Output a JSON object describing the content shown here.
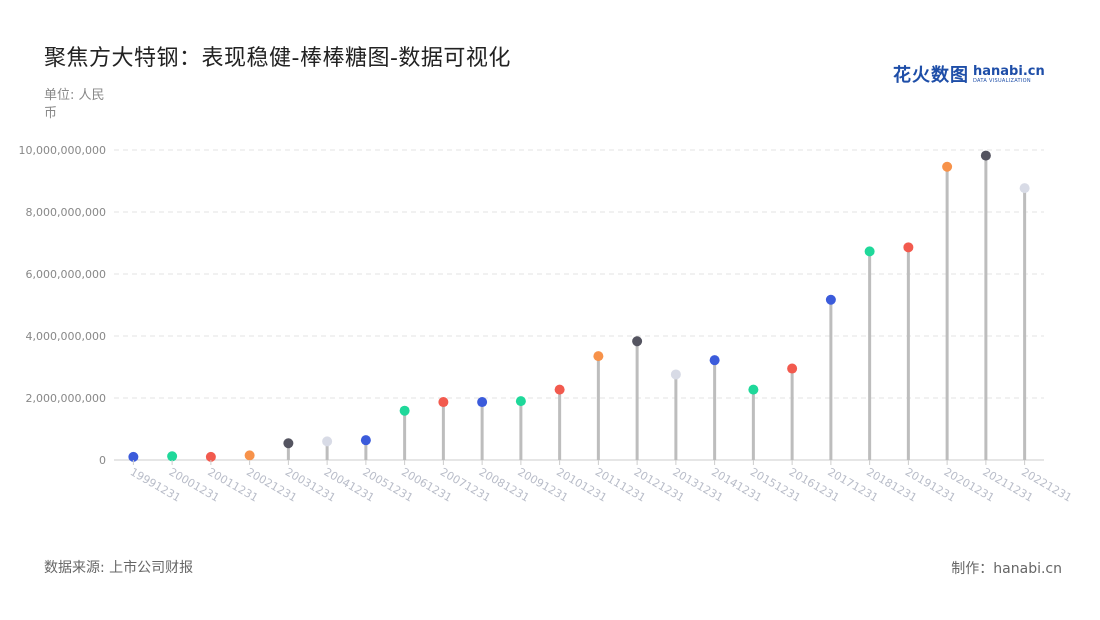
{
  "title": "聚焦方大特钢：表现稳健-棒棒糖图-数据可视化",
  "unit_label": "单位: 人民币",
  "source_label": "数据来源: 上市公司财报",
  "credit_label": "制作：hanabi.cn",
  "logo": {
    "cn": "花火数图",
    "en": "hanabi.cn",
    "sub": "DATA VISUALIZATION"
  },
  "colors": {
    "stem": "#bdbdbd",
    "grid": "#e3e3e3",
    "palette": [
      "#3b5bdb",
      "#1fd89a",
      "#f25a4e",
      "#f7924a",
      "#545460",
      "#d8dbe6"
    ]
  },
  "chart_data": {
    "type": "lollipop",
    "ylim": [
      0,
      10000000000
    ],
    "yticks": [
      "0",
      "2,000,000,000",
      "4,000,000,000",
      "6,000,000,000",
      "8,000,000,000",
      "10,000,000,000"
    ],
    "grid": true,
    "categories": [
      "19991231",
      "20001231",
      "20011231",
      "20021231",
      "20031231",
      "20041231",
      "20051231",
      "20061231",
      "20071231",
      "20081231",
      "20091231",
      "20101231",
      "20111231",
      "20121231",
      "20131231",
      "20141231",
      "20151231",
      "20161231",
      "20171231",
      "20181231",
      "20191231",
      "20201231",
      "20211231",
      "20221231"
    ],
    "values": [
      100000000,
      120000000,
      100000000,
      150000000,
      540000000,
      600000000,
      640000000,
      1590000000,
      1870000000,
      1870000000,
      1900000000,
      2270000000,
      3350000000,
      3830000000,
      2760000000,
      3220000000,
      2270000000,
      2950000000,
      5170000000,
      6730000000,
      6860000000,
      9460000000,
      9820000000,
      8770000000
    ],
    "point_colors": [
      "#3b5bdb",
      "#1fd89a",
      "#f25a4e",
      "#f7924a",
      "#545460",
      "#d8dbe6",
      "#3b5bdb",
      "#1fd89a",
      "#f25a4e",
      "#3b5bdb",
      "#1fd89a",
      "#f25a4e",
      "#f7924a",
      "#545460",
      "#d8dbe6",
      "#3b5bdb",
      "#1fd89a",
      "#f25a4e",
      "#3b5bdb",
      "#1fd89a",
      "#f25a4e",
      "#f7924a",
      "#545460",
      "#d8dbe6"
    ]
  }
}
